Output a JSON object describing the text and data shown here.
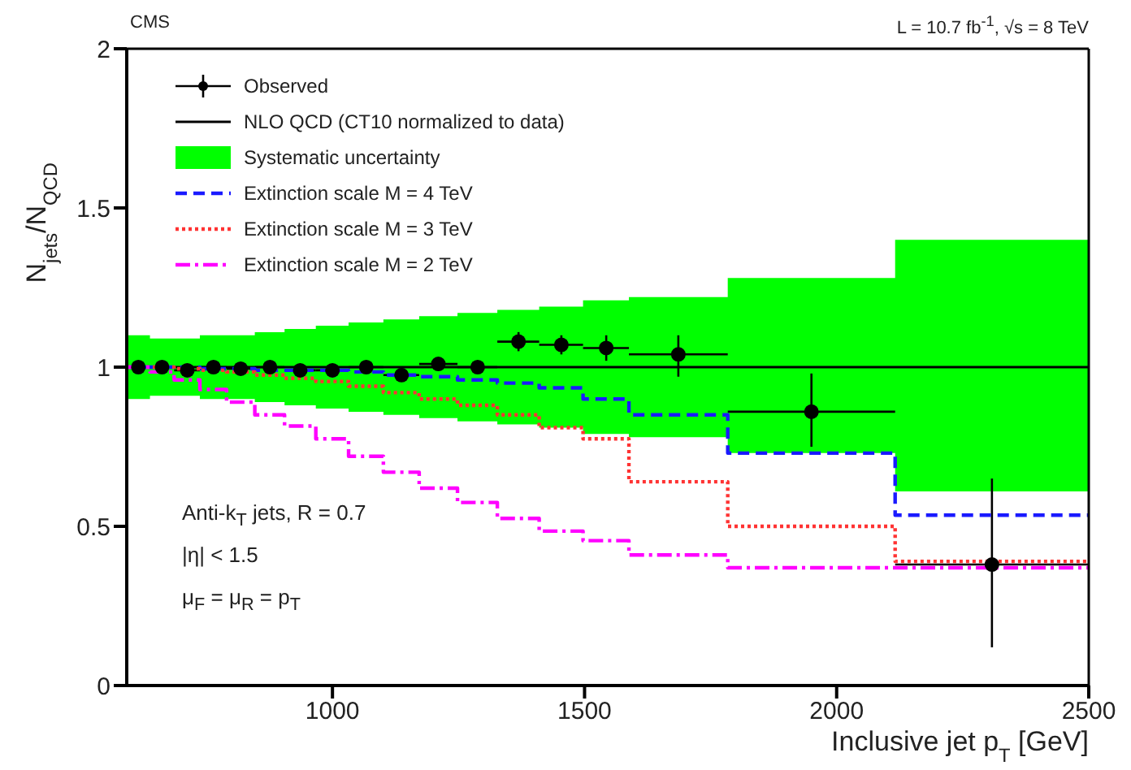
{
  "chart_data": {
    "type": "scatter",
    "xlabel": "Inclusive jet p$_{T}$ [GeV]",
    "ylabel": "N$_{jets}$/N$_{QCD}$",
    "xlim": [
      592,
      2500
    ],
    "xticks": [
      1000,
      1500,
      2000,
      2500
    ],
    "ylim": [
      0,
      2
    ],
    "yticks": [
      0,
      0.5,
      1,
      1.5,
      2
    ],
    "legend": "top left",
    "annotations": [
      "CMS",
      "L = 10.7 fb$^{-1}$, √s = 8 TeV",
      "Anti-k$_{T}$ jets, R = 0.7",
      "|η| < 1.5",
      "μ$_{F}$ = μ$_{R}$ = p$_{T}$",
      "Systematic uncertainty"
    ],
    "series": [
      {
        "name": "Observed",
        "type": "scatter",
        "color": "#000000",
        "marker": "circle",
        "x": [
          615,
          662,
          712,
          764,
          818,
          876,
          936,
          1000,
          1067,
          1137,
          1210,
          1288,
          1369,
          1454,
          1543,
          1686,
          1950,
          2308
        ],
        "values": [
          1.0,
          1.0,
          0.99,
          1.0,
          0.995,
          1.0,
          0.99,
          0.99,
          1.0,
          0.975,
          1.01,
          1.0,
          1.08,
          1.07,
          1.06,
          1.04,
          0.86,
          0.38
        ],
        "errors": [
          null,
          null,
          null,
          null,
          null,
          null,
          null,
          null,
          null,
          null,
          null,
          null,
          [
            1.05,
            1.11
          ],
          [
            1.04,
            1.1
          ],
          [
            1.02,
            1.1
          ],
          [
            0.97,
            1.1
          ],
          [
            0.75,
            0.98
          ],
          [
            0.12,
            0.65
          ]
        ],
        "xerrors": [
          [
            592,
            638
          ],
          [
            638,
            686
          ],
          [
            686,
            737
          ],
          [
            737,
            790
          ],
          [
            790,
            846
          ],
          [
            846,
            905
          ],
          [
            905,
            967
          ],
          [
            967,
            1032
          ],
          [
            1032,
            1101
          ],
          [
            1101,
            1172
          ],
          [
            1172,
            1248
          ],
          [
            1248,
            1327
          ],
          [
            1327,
            1410
          ],
          [
            1410,
            1497
          ],
          [
            1497,
            1588
          ],
          [
            1588,
            1784
          ],
          [
            1784,
            2116
          ],
          [
            2116,
            2500
          ]
        ]
      },
      {
        "name": "NLO QCD (CT10 normalized to data)",
        "type": "line",
        "color": "#000000",
        "marker": "none",
        "line_style": "solid",
        "x": [
          592,
          638,
          686,
          737,
          790,
          846,
          905,
          967,
          1032,
          1101,
          1172,
          1248,
          1327,
          1410,
          1497,
          1588,
          1784,
          2116,
          2500
        ],
        "values": [
          1,
          1,
          1,
          1,
          1,
          1,
          1,
          1,
          1,
          1,
          1,
          1,
          1,
          1,
          1,
          1,
          1,
          1,
          1
        ],
        "lower": [
          0.9,
          0.91,
          0.91,
          0.9,
          0.9,
          0.89,
          0.88,
          0.87,
          0.86,
          0.85,
          0.84,
          0.83,
          0.82,
          0.81,
          0.79,
          0.78,
          0.73,
          0.61,
          0.61
        ],
        "upper": [
          1.1,
          1.09,
          1.09,
          1.1,
          1.1,
          1.11,
          1.12,
          1.13,
          1.14,
          1.15,
          1.16,
          1.17,
          1.18,
          1.19,
          1.21,
          1.22,
          1.28,
          1.4,
          1.4
        ]
      },
      {
        "name": "Extinction scale M = 4 TeV",
        "type": "step",
        "color": "#1a1aff",
        "marker": "none",
        "line_style": "dashed",
        "x": [
          592,
          638,
          686,
          737,
          790,
          846,
          905,
          967,
          1032,
          1101,
          1172,
          1248,
          1327,
          1410,
          1497,
          1588,
          1784,
          2116,
          2500
        ],
        "values": [
          1.0,
          1.0,
          1.0,
          0.995,
          0.995,
          0.99,
          0.99,
          0.99,
          0.985,
          0.975,
          0.97,
          0.96,
          0.95,
          0.935,
          0.9,
          0.85,
          0.73,
          0.535,
          0.535
        ]
      },
      {
        "name": "Extinction scale M = 3 TeV",
        "type": "step",
        "color": "#ff3333",
        "marker": "none",
        "line_style": "dotted",
        "x": [
          592,
          638,
          686,
          737,
          790,
          846,
          905,
          967,
          1032,
          1101,
          1172,
          1248,
          1327,
          1410,
          1497,
          1588,
          1784,
          2116,
          2500
        ],
        "values": [
          1.0,
          1.0,
          0.995,
          0.99,
          0.985,
          0.975,
          0.965,
          0.955,
          0.94,
          0.92,
          0.9,
          0.88,
          0.85,
          0.81,
          0.775,
          0.64,
          0.5,
          0.39,
          0.39
        ]
      },
      {
        "name": "Extinction scale M = 2 TeV",
        "type": "step",
        "color": "#ff00ff",
        "marker": "none",
        "line_style": "dashdot",
        "x": [
          592,
          638,
          686,
          737,
          790,
          846,
          905,
          967,
          1032,
          1101,
          1172,
          1248,
          1327,
          1410,
          1497,
          1588,
          1784,
          2116,
          2500
        ],
        "values": [
          1.0,
          0.985,
          0.96,
          0.93,
          0.89,
          0.85,
          0.815,
          0.775,
          0.72,
          0.67,
          0.62,
          0.575,
          0.525,
          0.485,
          0.455,
          0.41,
          0.37,
          0.37,
          0.37
        ]
      }
    ]
  }
}
